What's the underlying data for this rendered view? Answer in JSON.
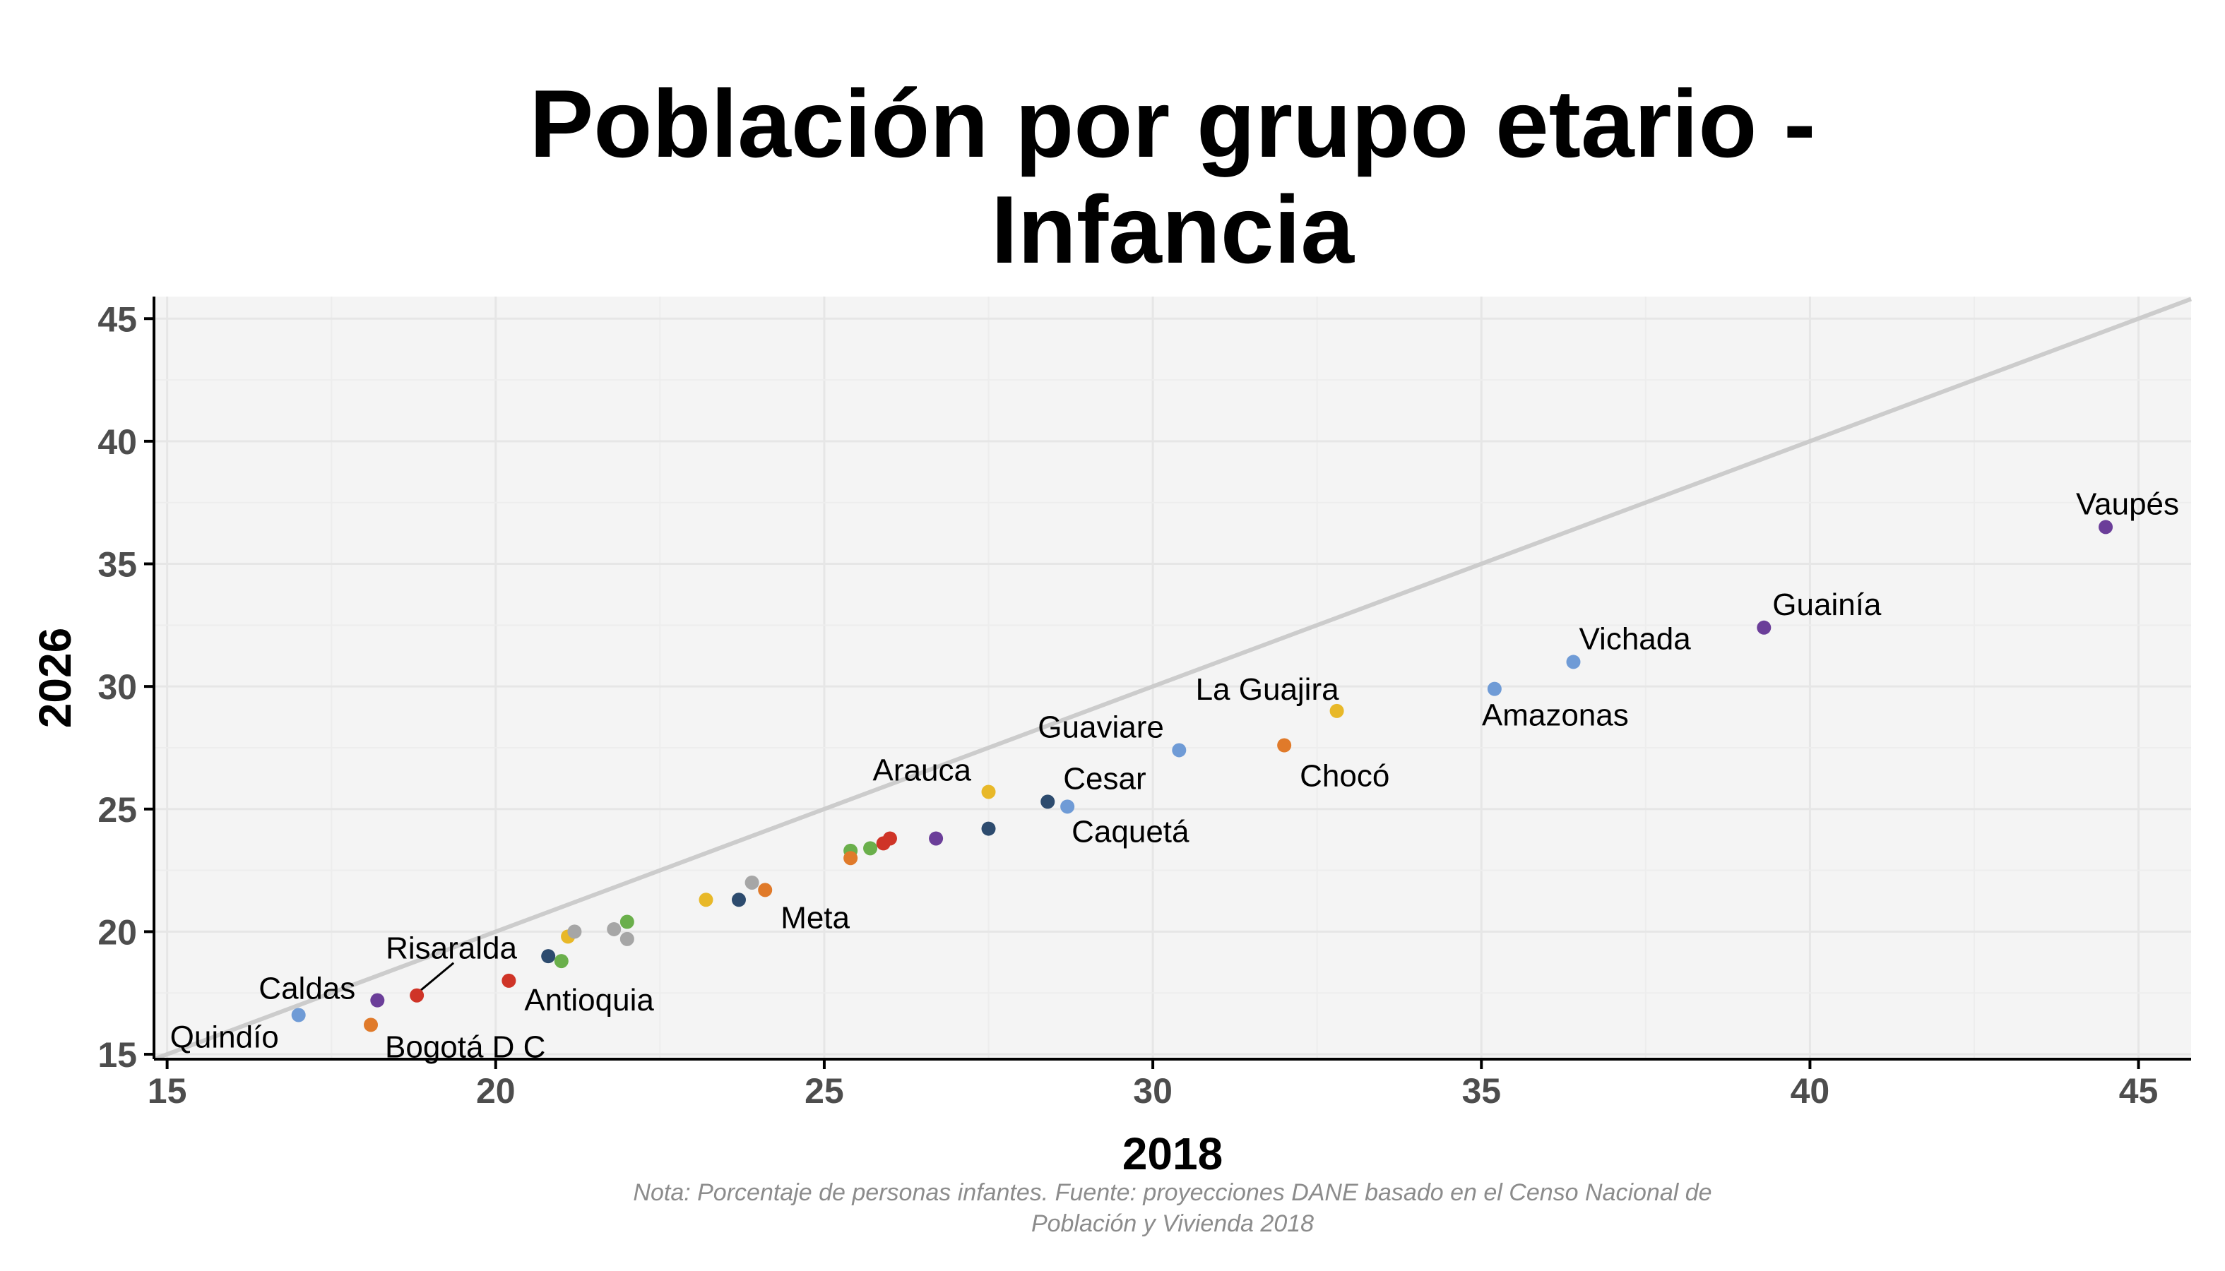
{
  "title_lines": [
    "Población por grupo etario -",
    "Infancia"
  ],
  "note_lines": [
    "Nota: Porcentaje de personas infantes. Fuente: proyecciones DANE basado en el Censo Nacional de",
    "Población y Vivienda 2018"
  ],
  "chart_data": {
    "type": "scatter",
    "title": "Población por grupo etario - Infancia",
    "xlabel": "2018",
    "ylabel": "2026",
    "xlim": [
      14.8,
      45.8
    ],
    "ylim": [
      14.8,
      45.9
    ],
    "x_ticks": [
      15,
      20,
      25,
      30,
      35,
      40,
      45
    ],
    "y_ticks": [
      15,
      20,
      25,
      30,
      35,
      40,
      45
    ],
    "grid": true,
    "reference_line": {
      "type": "identity",
      "color": "#cccccc"
    },
    "points": [
      {
        "label": "Quindío",
        "x": 17.0,
        "y": 16.6,
        "color": "#6f9bd6"
      },
      {
        "label": "Bogotá D C",
        "x": 18.1,
        "y": 16.2,
        "color": "#e07a2a"
      },
      {
        "label": "Caldas",
        "x": 18.2,
        "y": 17.2,
        "color": "#6b3e99"
      },
      {
        "label": "Risaralda",
        "x": 18.8,
        "y": 17.4,
        "color": "#cf3427"
      },
      {
        "label": "Antioquia",
        "x": 20.2,
        "y": 18.0,
        "color": "#cf3427"
      },
      {
        "label": "",
        "x": 20.8,
        "y": 19.0,
        "color": "#2d4b6e"
      },
      {
        "label": "",
        "x": 21.0,
        "y": 18.8,
        "color": "#6aaf4b"
      },
      {
        "label": "",
        "x": 21.1,
        "y": 19.8,
        "color": "#e8b828"
      },
      {
        "label": "",
        "x": 21.2,
        "y": 20.0,
        "color": "#a6a6a6"
      },
      {
        "label": "",
        "x": 21.8,
        "y": 20.1,
        "color": "#a6a6a6"
      },
      {
        "label": "",
        "x": 22.0,
        "y": 19.7,
        "color": "#a6a6a6"
      },
      {
        "label": "",
        "x": 22.0,
        "y": 20.4,
        "color": "#6aaf4b"
      },
      {
        "label": "",
        "x": 23.2,
        "y": 21.3,
        "color": "#e8b828"
      },
      {
        "label": "",
        "x": 23.7,
        "y": 21.3,
        "color": "#2d4b6e"
      },
      {
        "label": "",
        "x": 23.9,
        "y": 22.0,
        "color": "#a6a6a6"
      },
      {
        "label": "Meta",
        "x": 24.1,
        "y": 21.7,
        "color": "#e07a2a"
      },
      {
        "label": "",
        "x": 25.4,
        "y": 23.3,
        "color": "#6aaf4b"
      },
      {
        "label": "",
        "x": 25.4,
        "y": 23.0,
        "color": "#e07a2a"
      },
      {
        "label": "",
        "x": 25.7,
        "y": 23.4,
        "color": "#6aaf4b"
      },
      {
        "label": "",
        "x": 25.9,
        "y": 23.6,
        "color": "#cf3427"
      },
      {
        "label": "",
        "x": 26.0,
        "y": 23.8,
        "color": "#cf3427"
      },
      {
        "label": "",
        "x": 26.7,
        "y": 23.8,
        "color": "#6b3e99"
      },
      {
        "label": "",
        "x": 27.5,
        "y": 24.2,
        "color": "#2d4b6e"
      },
      {
        "label": "Arauca",
        "x": 27.5,
        "y": 25.7,
        "color": "#e8b828"
      },
      {
        "label": "Cesar",
        "x": 28.4,
        "y": 25.3,
        "color": "#2d4b6e"
      },
      {
        "label": "Caquetá",
        "x": 28.7,
        "y": 25.1,
        "color": "#6f9bd6"
      },
      {
        "label": "Guaviare",
        "x": 30.4,
        "y": 27.4,
        "color": "#6f9bd6"
      },
      {
        "label": "Chocó",
        "x": 32.0,
        "y": 27.6,
        "color": "#e07a2a"
      },
      {
        "label": "La Guajira",
        "x": 32.8,
        "y": 29.0,
        "color": "#e8b828"
      },
      {
        "label": "Amazonas",
        "x": 35.2,
        "y": 29.9,
        "color": "#6f9bd6"
      },
      {
        "label": "Vichada",
        "x": 36.4,
        "y": 31.0,
        "color": "#6f9bd6"
      },
      {
        "label": "Guainía",
        "x": 39.3,
        "y": 32.4,
        "color": "#6b3e99"
      },
      {
        "label": "Vaupés",
        "x": 44.5,
        "y": 36.5,
        "color": "#6b3e99"
      }
    ]
  }
}
